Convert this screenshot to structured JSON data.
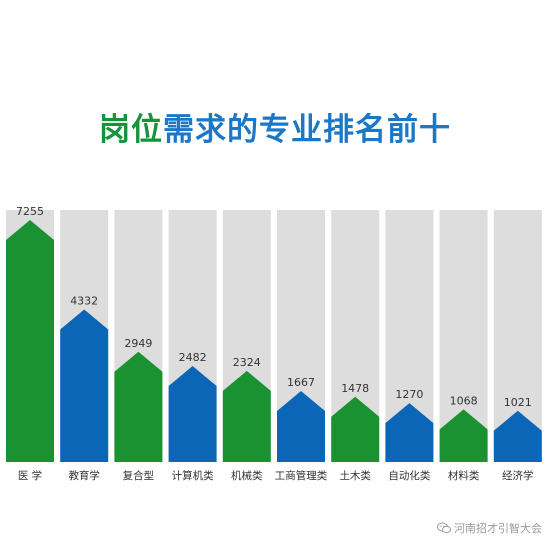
{
  "chart_data": {
    "type": "bar",
    "title": "岗位需求的专业排名前十",
    "categories": [
      "医 学",
      "教育学",
      "复合型",
      "计算机类",
      "机械类",
      "工商管理类",
      "土木类",
      "自动化类",
      "材料类",
      "经济学"
    ],
    "values": [
      7255,
      4332,
      2949,
      2482,
      2324,
      1667,
      1478,
      1270,
      1068,
      1021
    ],
    "value_labels": [
      "7255",
      "4332",
      "2949",
      "2482",
      "2324",
      "1667",
      "1478",
      "1270",
      "1068",
      "1021"
    ],
    "ylim": [
      0,
      7255
    ],
    "grid": false,
    "legend": "none",
    "xlabel": "",
    "ylabel": ""
  },
  "colors": {
    "title_green": "#15943a",
    "title_blue": "#1b78c7",
    "green": "#1a9232",
    "blue": "#0b66b8",
    "track": "#dddddd",
    "label": "#333333"
  },
  "watermark": {
    "text": "河南招才引智大会",
    "icon": "wechat-icon"
  }
}
